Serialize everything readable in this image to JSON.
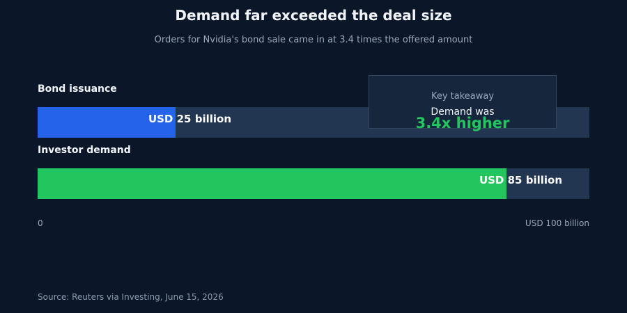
{
  "header": {
    "title": "Demand far exceeded the deal size",
    "subtitle": "Orders for Nvidia's bond sale came in at 3.4 times the offered amount"
  },
  "chart_data": {
    "type": "bar",
    "orientation": "horizontal",
    "categories": [
      "Bond issuance",
      "Investor demand"
    ],
    "values": [
      25,
      85
    ],
    "value_labels": [
      "USD 25 billion",
      "USD 85 billion"
    ],
    "bar_colors": [
      "#2563eb",
      "#22c55e"
    ],
    "xlim": [
      0,
      100
    ],
    "tick_labels": [
      "0",
      "USD 100 billion"
    ],
    "grid": false
  },
  "callout": {
    "label": "Key takeaway",
    "text": "Demand was",
    "value": "3.4x higher",
    "value_color": "#22c55e"
  },
  "footer": {
    "source": "Source: Reuters via Investing, June 15, 2026"
  },
  "colors": {
    "background": "#0b1729",
    "track": "#233651"
  }
}
